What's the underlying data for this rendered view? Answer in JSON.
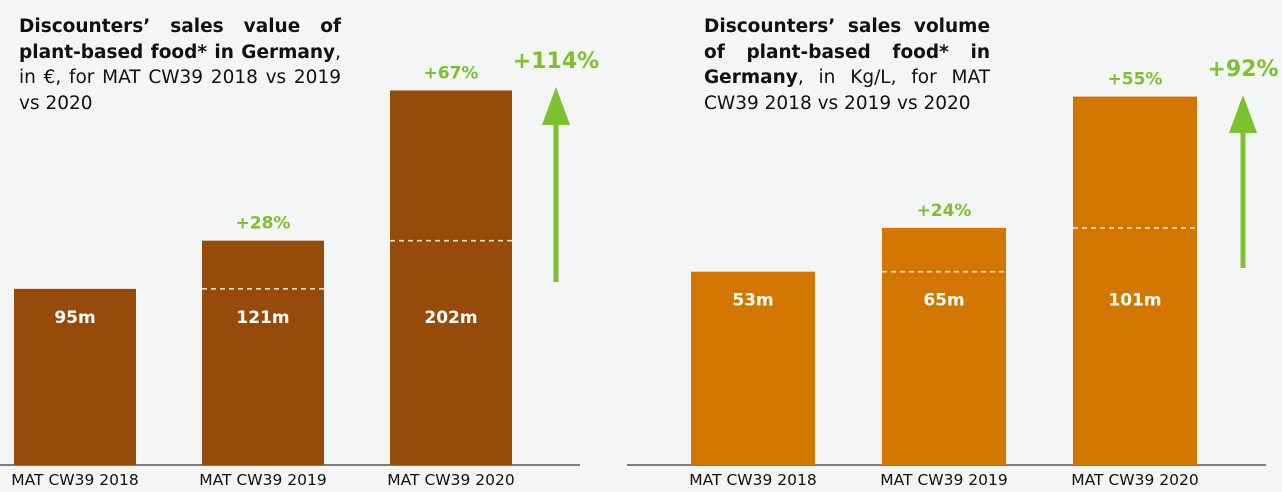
{
  "chart_data": [
    {
      "type": "bar",
      "title_bold": "Discounters’ sales value of plant-based food* in Germany",
      "title_rest": ", in €, for MAT CW39 2018 vs 2019 vs 2020",
      "categories": [
        "MAT CW39 2018",
        "MAT CW39 2019",
        "MAT CW39 2020"
      ],
      "values": [
        95,
        121,
        202
      ],
      "value_labels": [
        "95m",
        "121m",
        "202m"
      ],
      "unit": "€",
      "growth_labels": [
        "",
        "+28%",
        "+67%"
      ],
      "total_growth": "+114%",
      "ylim": [
        0,
        240
      ],
      "xlabel": "",
      "ylabel": "",
      "bar_color": "#974b0a",
      "accent_color": "#7cc22e"
    },
    {
      "type": "bar",
      "title_bold": "Discounters’ sales volume of plant-based food* in Germany",
      "title_rest": ", in Kg/L, for MAT CW39 2018 vs 2019 vs 2020",
      "categories": [
        "MAT CW39 2018",
        "MAT CW39 2019",
        "MAT CW39 2020"
      ],
      "values": [
        53,
        65,
        101
      ],
      "value_labels": [
        "53m",
        "65m",
        "101m"
      ],
      "unit": "Kg/L",
      "growth_labels": [
        "",
        "+24%",
        "+55%"
      ],
      "total_growth": "+92%",
      "ylim": [
        0,
        122
      ],
      "xlabel": "",
      "ylabel": "",
      "bar_color": "#d27600",
      "accent_color": "#7cc22e"
    }
  ]
}
